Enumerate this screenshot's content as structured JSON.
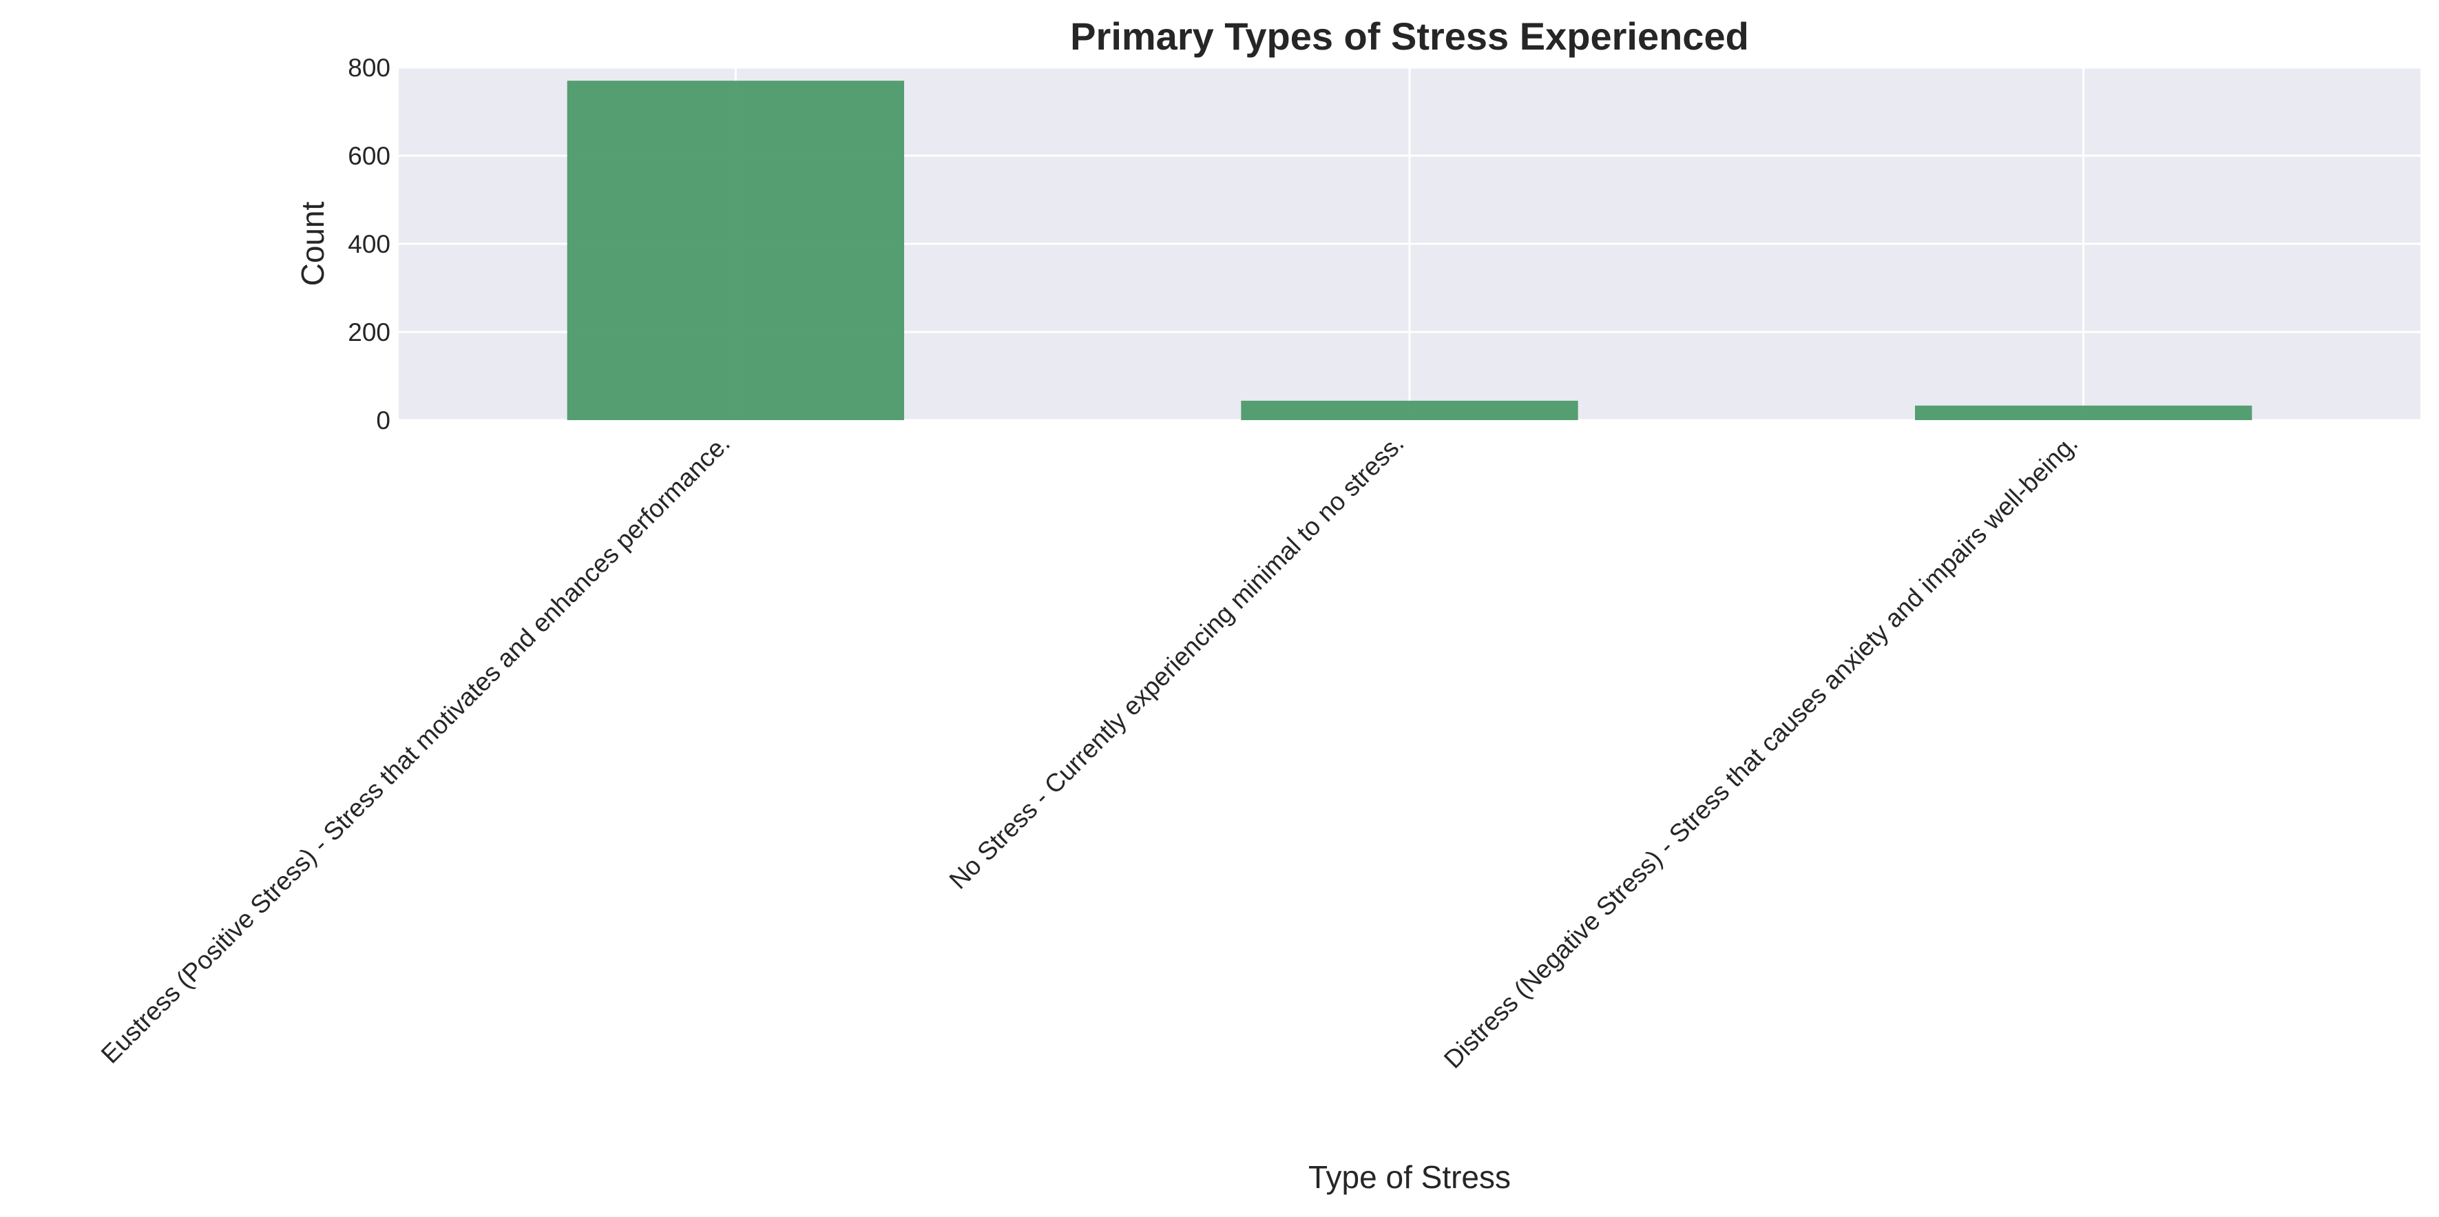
{
  "chart_data": {
    "type": "bar",
    "title": "Primary Types of Stress Experienced",
    "xlabel": "Type of Stress",
    "ylabel": "Count",
    "categories": [
      "Eustress (Positive Stress) - Stress that motivates and enhances performance.",
      "No Stress - Currently experiencing minimal to no stress.",
      "Distress (Negative Stress) - Stress that causes anxiety and impairs well-being."
    ],
    "values": [
      770,
      44,
      33
    ],
    "ylim": [
      0,
      800
    ],
    "yticks": [
      0,
      200,
      400,
      600,
      800
    ],
    "grid": true,
    "legend": "none",
    "bar_color": "#4c9a6a",
    "background_color": "#eaeaf2",
    "grid_color": "#ffffff"
  }
}
